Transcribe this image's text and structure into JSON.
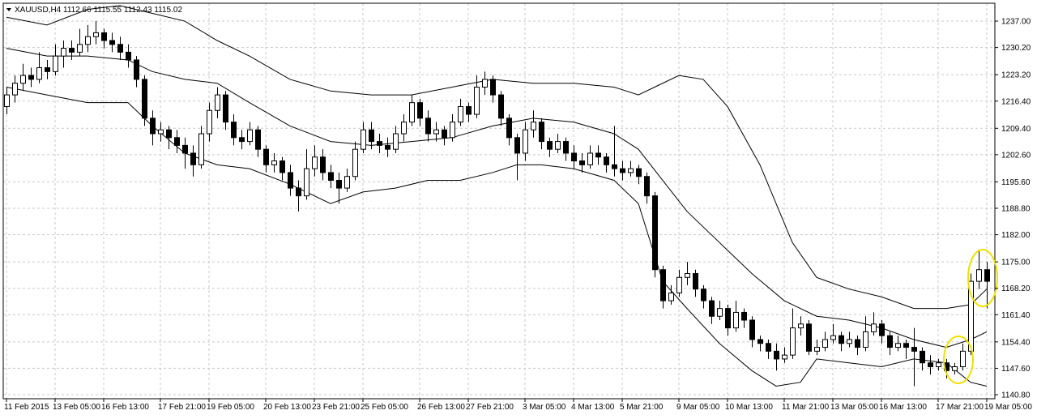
{
  "chart_data": {
    "type": "candlestick",
    "title": "XAUUSD,H4  1112.66 1115.55 1112.43 1115.02",
    "ylim": [
      1139.76,
      1241.6
    ],
    "yticks": [
      {
        "value": 1237.0,
        "label": "1237.00"
      },
      {
        "value": 1230.2,
        "label": "1230.20"
      },
      {
        "value": 1223.2,
        "label": "1223.20"
      },
      {
        "value": 1216.4,
        "label": "1216.40"
      },
      {
        "value": 1209.4,
        "label": "1209.40"
      },
      {
        "value": 1202.6,
        "label": "1202.60"
      },
      {
        "value": 1195.6,
        "label": "1195.60"
      },
      {
        "value": 1188.8,
        "label": "1188.80"
      },
      {
        "value": 1182.0,
        "label": "1182.00"
      },
      {
        "value": 1175.0,
        "label": "1175.00"
      },
      {
        "value": 1168.2,
        "label": "1168.20"
      },
      {
        "value": 1161.4,
        "label": "1161.40"
      },
      {
        "value": 1154.4,
        "label": "1154.40"
      },
      {
        "value": 1147.6,
        "label": "1147.60"
      },
      {
        "value": 1140.8,
        "label": "1140.80"
      }
    ],
    "xticks": [
      {
        "value": 0,
        "label": "11 Feb 2015"
      },
      {
        "value": 6,
        "label": "13 Feb 05:00"
      },
      {
        "value": 12,
        "label": "16 Feb 13:00"
      },
      {
        "value": 19,
        "label": "17 Feb 21:00"
      },
      {
        "value": 25,
        "label": "19 Feb 05:00"
      },
      {
        "value": 32,
        "label": "20 Feb 13:00"
      },
      {
        "value": 38,
        "label": "23 Feb 21:00"
      },
      {
        "value": 44,
        "label": "25 Feb 05:00"
      },
      {
        "value": 51,
        "label": "26 Feb 13:00"
      },
      {
        "value": 57,
        "label": "27 Feb 21:00"
      },
      {
        "value": 64,
        "label": "3 Mar 05:00"
      },
      {
        "value": 70,
        "label": "4 Mar 13:00"
      },
      {
        "value": 76,
        "label": "5 Mar 21:00"
      },
      {
        "value": 83,
        "label": "9 Mar 05:00"
      },
      {
        "value": 89,
        "label": "10 Mar 13:00"
      },
      {
        "value": 96,
        "label": "11 Mar 21:00"
      },
      {
        "value": 102,
        "label": "13 Mar 05:00"
      },
      {
        "value": 108,
        "label": "16 Mar 13:00"
      },
      {
        "value": 115,
        "label": "17 Mar 21:00"
      },
      {
        "value": 121,
        "label": "19 Mar 05:00"
      }
    ],
    "grid": true,
    "up_color": "#ffffff",
    "down_color": "#000000",
    "line_color": "#000000",
    "candles": [
      [
        1215,
        1220,
        1213,
        1218
      ],
      [
        1218,
        1223,
        1216,
        1221
      ],
      [
        1221,
        1226,
        1219,
        1223
      ],
      [
        1223,
        1225,
        1220,
        1222
      ],
      [
        1222,
        1229,
        1221,
        1225
      ],
      [
        1225,
        1227,
        1222,
        1224
      ],
      [
        1224,
        1231,
        1223,
        1228
      ],
      [
        1228,
        1232,
        1225,
        1230
      ],
      [
        1230,
        1232,
        1227,
        1229
      ],
      [
        1229,
        1235,
        1228,
        1231
      ],
      [
        1231,
        1236,
        1229,
        1233
      ],
      [
        1233,
        1237,
        1231,
        1234
      ],
      [
        1234,
        1235,
        1230,
        1232
      ],
      [
        1232,
        1234,
        1229,
        1231
      ],
      [
        1231,
        1233,
        1227,
        1229
      ],
      [
        1229,
        1231,
        1225,
        1227
      ],
      [
        1227,
        1228,
        1220,
        1222
      ],
      [
        1222,
        1223,
        1210,
        1212
      ],
      [
        1212,
        1214,
        1205,
        1208
      ],
      [
        1208,
        1211,
        1206,
        1209
      ],
      [
        1209,
        1210,
        1204,
        1207
      ],
      [
        1207,
        1209,
        1203,
        1205
      ],
      [
        1205,
        1207,
        1199,
        1203
      ],
      [
        1203,
        1205,
        1197,
        1200
      ],
      [
        1200,
        1210,
        1199,
        1208
      ],
      [
        1208,
        1216,
        1206,
        1214
      ],
      [
        1214,
        1220,
        1212,
        1218
      ],
      [
        1218,
        1219,
        1209,
        1211
      ],
      [
        1211,
        1213,
        1205,
        1207
      ],
      [
        1207,
        1209,
        1204,
        1206
      ],
      [
        1206,
        1211,
        1205,
        1209
      ],
      [
        1209,
        1210,
        1202,
        1204
      ],
      [
        1204,
        1205,
        1198,
        1200
      ],
      [
        1200,
        1203,
        1198,
        1201
      ],
      [
        1201,
        1202,
        1196,
        1198
      ],
      [
        1198,
        1200,
        1192,
        1194
      ],
      [
        1194,
        1196,
        1188,
        1192
      ],
      [
        1192,
        1204,
        1191,
        1199
      ],
      [
        1199,
        1205,
        1197,
        1202
      ],
      [
        1202,
        1204,
        1196,
        1198
      ],
      [
        1198,
        1200,
        1194,
        1196
      ],
      [
        1196,
        1198,
        1190,
        1194
      ],
      [
        1194,
        1199,
        1193,
        1197
      ],
      [
        1197,
        1206,
        1196,
        1204
      ],
      [
        1204,
        1211,
        1203,
        1209
      ],
      [
        1209,
        1211,
        1204,
        1206
      ],
      [
        1206,
        1208,
        1203,
        1205
      ],
      [
        1205,
        1207,
        1202,
        1204
      ],
      [
        1204,
        1210,
        1203,
        1208
      ],
      [
        1208,
        1213,
        1206,
        1211
      ],
      [
        1211,
        1218,
        1210,
        1216
      ],
      [
        1216,
        1217,
        1210,
        1212
      ],
      [
        1212,
        1214,
        1206,
        1208
      ],
      [
        1208,
        1211,
        1206,
        1209
      ],
      [
        1209,
        1210,
        1205,
        1207
      ],
      [
        1207,
        1213,
        1206,
        1211
      ],
      [
        1211,
        1217,
        1210,
        1215
      ],
      [
        1215,
        1216,
        1211,
        1213
      ],
      [
        1213,
        1223,
        1212,
        1220
      ],
      [
        1220,
        1224,
        1218,
        1222
      ],
      [
        1222,
        1223,
        1216,
        1218
      ],
      [
        1218,
        1219,
        1210,
        1212
      ],
      [
        1212,
        1213,
        1205,
        1207
      ],
      [
        1207,
        1208,
        1196,
        1203
      ],
      [
        1203,
        1211,
        1201,
        1209
      ],
      [
        1209,
        1214,
        1207,
        1211
      ],
      [
        1211,
        1212,
        1204,
        1206
      ],
      [
        1206,
        1207,
        1202,
        1204
      ],
      [
        1204,
        1208,
        1203,
        1206
      ],
      [
        1206,
        1207,
        1201,
        1203
      ],
      [
        1203,
        1205,
        1199,
        1201
      ],
      [
        1201,
        1203,
        1198,
        1200
      ],
      [
        1200,
        1205,
        1199,
        1203
      ],
      [
        1203,
        1205,
        1200,
        1202
      ],
      [
        1202,
        1203,
        1198,
        1200
      ],
      [
        1200,
        1210,
        1197,
        1199
      ],
      [
        1199,
        1201,
        1196,
        1198
      ],
      [
        1198,
        1201,
        1197,
        1199
      ],
      [
        1199,
        1200,
        1195,
        1197
      ],
      [
        1197,
        1198,
        1190,
        1192
      ],
      [
        1192,
        1193,
        1171,
        1173
      ],
      [
        1173,
        1174,
        1163,
        1165
      ],
      [
        1165,
        1169,
        1164,
        1167
      ],
      [
        1167,
        1173,
        1166,
        1171
      ],
      [
        1171,
        1175,
        1169,
        1172
      ],
      [
        1172,
        1173,
        1166,
        1168
      ],
      [
        1168,
        1169,
        1163,
        1165
      ],
      [
        1165,
        1166,
        1159,
        1161
      ],
      [
        1161,
        1165,
        1160,
        1163
      ],
      [
        1163,
        1164,
        1156,
        1158
      ],
      [
        1158,
        1165,
        1157,
        1162
      ],
      [
        1162,
        1163,
        1158,
        1160
      ],
      [
        1160,
        1161,
        1153,
        1155
      ],
      [
        1155,
        1156,
        1152,
        1154
      ],
      [
        1154,
        1155,
        1150,
        1152
      ],
      [
        1152,
        1154,
        1147,
        1150
      ],
      [
        1150,
        1153,
        1149,
        1151
      ],
      [
        1151,
        1163,
        1150,
        1158
      ],
      [
        1158,
        1161,
        1156,
        1159
      ],
      [
        1159,
        1160,
        1151,
        1152
      ],
      [
        1152,
        1155,
        1151,
        1153
      ],
      [
        1153,
        1157,
        1152,
        1155
      ],
      [
        1155,
        1159,
        1154,
        1156
      ],
      [
        1156,
        1157,
        1152,
        1154
      ],
      [
        1154,
        1157,
        1153,
        1155
      ],
      [
        1155,
        1156,
        1151,
        1153
      ],
      [
        1153,
        1161,
        1152,
        1157
      ],
      [
        1157,
        1162,
        1156,
        1159
      ],
      [
        1159,
        1160,
        1154,
        1156
      ],
      [
        1156,
        1157,
        1151,
        1153
      ],
      [
        1153,
        1156,
        1152,
        1154
      ],
      [
        1154,
        1155,
        1150,
        1153
      ],
      [
        1153,
        1158,
        1143,
        1152
      ],
      [
        1152,
        1153,
        1147,
        1149
      ],
      [
        1149,
        1151,
        1146,
        1148
      ],
      [
        1148,
        1150,
        1147,
        1149
      ],
      [
        1149,
        1150,
        1145,
        1147
      ],
      [
        1147,
        1149,
        1146,
        1148
      ],
      [
        1148,
        1154,
        1147,
        1152
      ],
      [
        1152,
        1172,
        1151,
        1170
      ],
      [
        1170,
        1178,
        1168,
        1173
      ],
      [
        1173,
        1175,
        1163,
        1170
      ]
    ],
    "bands": [
      {
        "x": [
          0,
          5,
          10,
          14,
          18,
          22,
          26,
          30,
          35,
          40,
          45,
          50,
          55,
          60,
          65,
          70,
          75,
          78,
          80,
          83,
          86,
          89,
          93,
          97,
          100,
          104,
          108,
          112,
          116,
          119,
          121
        ],
        "values": [
          1238,
          1236,
          1240,
          1241,
          1239,
          1237,
          1232,
          1228,
          1222,
          1219,
          1218,
          1218,
          1220,
          1222,
          1221,
          1221,
          1220,
          1218,
          1220,
          1223,
          1222,
          1215,
          1200,
          1180,
          1171,
          1168,
          1166,
          1163,
          1163,
          1164,
          1168
        ]
      },
      {
        "x": [
          0,
          5,
          10,
          15,
          18,
          22,
          26,
          30,
          35,
          40,
          45,
          50,
          55,
          60,
          65,
          70,
          75,
          78,
          81,
          84,
          88,
          92,
          96,
          100,
          104,
          108,
          112,
          116,
          119,
          121
        ],
        "values": [
          1230,
          1228,
          1228,
          1227,
          1224,
          1222,
          1221,
          1216,
          1210,
          1206,
          1205,
          1206,
          1207,
          1210,
          1212,
          1211,
          1208,
          1204,
          1196,
          1188,
          1180,
          1172,
          1165,
          1161,
          1160,
          1158,
          1155,
          1153,
          1155,
          1157
        ]
      },
      {
        "x": [
          0,
          5,
          10,
          15,
          18,
          22,
          26,
          30,
          35,
          40,
          44,
          48,
          52,
          56,
          60,
          63,
          66,
          70,
          75,
          78,
          81,
          84,
          88,
          92,
          95,
          98,
          100,
          104,
          108,
          112,
          116,
          119,
          121
        ],
        "values": [
          1220,
          1218,
          1216,
          1216,
          1210,
          1203,
          1200,
          1199,
          1195,
          1190,
          1193,
          1194,
          1196,
          1196,
          1198,
          1200,
          1200,
          1199,
          1196,
          1190,
          1170,
          1163,
          1154,
          1147,
          1143,
          1144,
          1150,
          1149,
          1148,
          1150,
          1149,
          1144,
          1143
        ]
      }
    ]
  }
}
